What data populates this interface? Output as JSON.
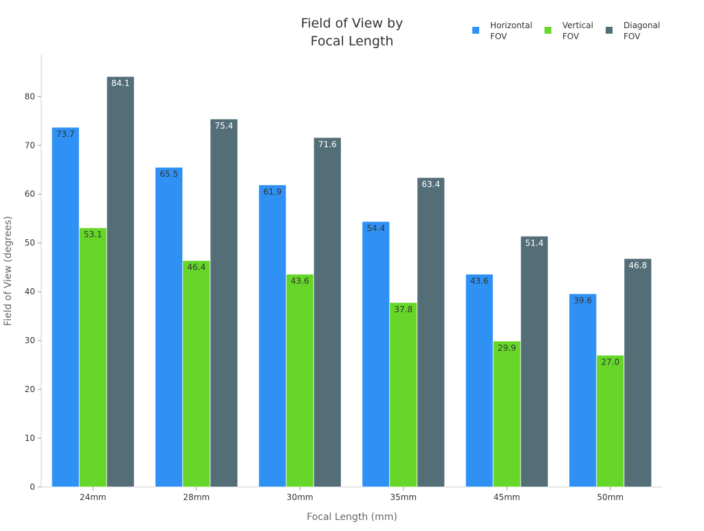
{
  "chart_data": {
    "type": "bar",
    "title": "Field of View by Focal Length",
    "xlabel": "Focal Length (mm)",
    "ylabel": "Field of View (degrees)",
    "categories": [
      "24mm",
      "28mm",
      "30mm",
      "35mm",
      "45mm",
      "50mm"
    ],
    "series": [
      {
        "name": "Horizontal FOV",
        "color": "#3091F5",
        "values": [
          73.7,
          65.5,
          61.9,
          54.4,
          43.6,
          39.6
        ]
      },
      {
        "name": "Vertical FOV",
        "color": "#66D629",
        "values": [
          53.1,
          46.4,
          43.6,
          37.8,
          29.9,
          27.0
        ]
      },
      {
        "name": "Diagonal FOV",
        "color": "#546E78",
        "values": [
          84.1,
          75.4,
          71.6,
          63.4,
          51.4,
          46.8
        ]
      }
    ],
    "yticks": [
      0,
      10,
      20,
      30,
      40,
      50,
      60,
      70,
      80
    ],
    "ylim": [
      0,
      88.5
    ],
    "grid": false,
    "legend": "top-right",
    "data_labels": true
  }
}
